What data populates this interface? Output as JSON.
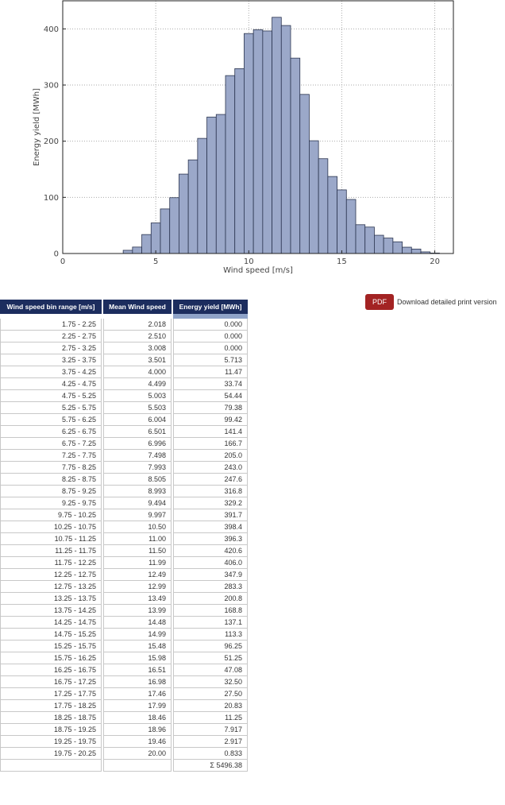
{
  "chart_data": {
    "type": "bar",
    "xlabel": "Wind speed [m/s]",
    "ylabel": "Energy yield [MWh]",
    "xlim": [
      0,
      21
    ],
    "ylim": [
      0,
      450
    ],
    "xticks": [
      0,
      5,
      10,
      15,
      20
    ],
    "yticks": [
      0,
      100,
      200,
      300,
      400
    ],
    "grid": true,
    "bin_width": 0.5,
    "bars": [
      {
        "x": 3.5,
        "y": 5.713
      },
      {
        "x": 4.0,
        "y": 11.47
      },
      {
        "x": 4.5,
        "y": 33.74
      },
      {
        "x": 5.0,
        "y": 54.44
      },
      {
        "x": 5.5,
        "y": 79.38
      },
      {
        "x": 6.0,
        "y": 99.42
      },
      {
        "x": 6.5,
        "y": 141.4
      },
      {
        "x": 7.0,
        "y": 166.7
      },
      {
        "x": 7.5,
        "y": 205.0
      },
      {
        "x": 8.0,
        "y": 243.0
      },
      {
        "x": 8.5,
        "y": 247.6
      },
      {
        "x": 9.0,
        "y": 316.8
      },
      {
        "x": 9.5,
        "y": 329.2
      },
      {
        "x": 10.0,
        "y": 391.7
      },
      {
        "x": 10.5,
        "y": 398.4
      },
      {
        "x": 11.0,
        "y": 396.3
      },
      {
        "x": 11.5,
        "y": 420.6
      },
      {
        "x": 12.0,
        "y": 406.0
      },
      {
        "x": 12.5,
        "y": 347.9
      },
      {
        "x": 13.0,
        "y": 283.3
      },
      {
        "x": 13.5,
        "y": 200.8
      },
      {
        "x": 14.0,
        "y": 168.8
      },
      {
        "x": 14.5,
        "y": 137.1
      },
      {
        "x": 15.0,
        "y": 113.3
      },
      {
        "x": 15.5,
        "y": 96.25
      },
      {
        "x": 16.0,
        "y": 51.25
      },
      {
        "x": 16.5,
        "y": 47.08
      },
      {
        "x": 17.0,
        "y": 32.5
      },
      {
        "x": 17.5,
        "y": 27.5
      },
      {
        "x": 18.0,
        "y": 20.83
      },
      {
        "x": 18.5,
        "y": 11.25
      },
      {
        "x": 19.0,
        "y": 7.917
      },
      {
        "x": 19.5,
        "y": 2.917
      },
      {
        "x": 20.0,
        "y": 0.833
      }
    ],
    "bar_color": "#9ba8c9",
    "bar_edge_color": "#2b3550"
  },
  "download": {
    "pdf_label": "PDF",
    "link_text": "Download detailed print version",
    "pdf_color": "#a32323"
  },
  "table": {
    "headers": [
      "Wind speed bin range [m/s]",
      "Mean Wind speed",
      "Energy yield [MWh]"
    ],
    "header_color": "#1c2d5e",
    "rows": [
      [
        "1.75 - 2.25",
        "2.018",
        "0.000"
      ],
      [
        "2.25 - 2.75",
        "2.510",
        "0.000"
      ],
      [
        "2.75 - 3.25",
        "3.008",
        "0.000"
      ],
      [
        "3.25 - 3.75",
        "3.501",
        "5.713"
      ],
      [
        "3.75 - 4.25",
        "4.000",
        "11.47"
      ],
      [
        "4.25 - 4.75",
        "4.499",
        "33.74"
      ],
      [
        "4.75 - 5.25",
        "5.003",
        "54.44"
      ],
      [
        "5.25 - 5.75",
        "5.503",
        "79.38"
      ],
      [
        "5.75 - 6.25",
        "6.004",
        "99.42"
      ],
      [
        "6.25 - 6.75",
        "6.501",
        "141.4"
      ],
      [
        "6.75 - 7.25",
        "6.996",
        "166.7"
      ],
      [
        "7.25 - 7.75",
        "7.498",
        "205.0"
      ],
      [
        "7.75 - 8.25",
        "7.993",
        "243.0"
      ],
      [
        "8.25 - 8.75",
        "8.505",
        "247.6"
      ],
      [
        "8.75 - 9.25",
        "8.993",
        "316.8"
      ],
      [
        "9.25 - 9.75",
        "9.494",
        "329.2"
      ],
      [
        "9.75 - 10.25",
        "9.997",
        "391.7"
      ],
      [
        "10.25 - 10.75",
        "10.50",
        "398.4"
      ],
      [
        "10.75 - 11.25",
        "11.00",
        "396.3"
      ],
      [
        "11.25 - 11.75",
        "11.50",
        "420.6"
      ],
      [
        "11.75 - 12.25",
        "11.99",
        "406.0"
      ],
      [
        "12.25 - 12.75",
        "12.49",
        "347.9"
      ],
      [
        "12.75 - 13.25",
        "12.99",
        "283.3"
      ],
      [
        "13.25 - 13.75",
        "13.49",
        "200.8"
      ],
      [
        "13.75 - 14.25",
        "13.99",
        "168.8"
      ],
      [
        "14.25 - 14.75",
        "14.48",
        "137.1"
      ],
      [
        "14.75 - 15.25",
        "14.99",
        "113.3"
      ],
      [
        "15.25 - 15.75",
        "15.48",
        "96.25"
      ],
      [
        "15.75 - 16.25",
        "15.98",
        "51.25"
      ],
      [
        "16.25 - 16.75",
        "16.51",
        "47.08"
      ],
      [
        "16.75 - 17.25",
        "16.98",
        "32.50"
      ],
      [
        "17.25 - 17.75",
        "17.46",
        "27.50"
      ],
      [
        "17.75 - 18.25",
        "17.99",
        "20.83"
      ],
      [
        "18.25 - 18.75",
        "18.46",
        "11.25"
      ],
      [
        "18.75 - 19.25",
        "18.96",
        "7.917"
      ],
      [
        "19.25 - 19.75",
        "19.46",
        "2.917"
      ],
      [
        "19.75 - 20.25",
        "20.00",
        "0.833"
      ]
    ],
    "total": "Σ 5496.38"
  }
}
